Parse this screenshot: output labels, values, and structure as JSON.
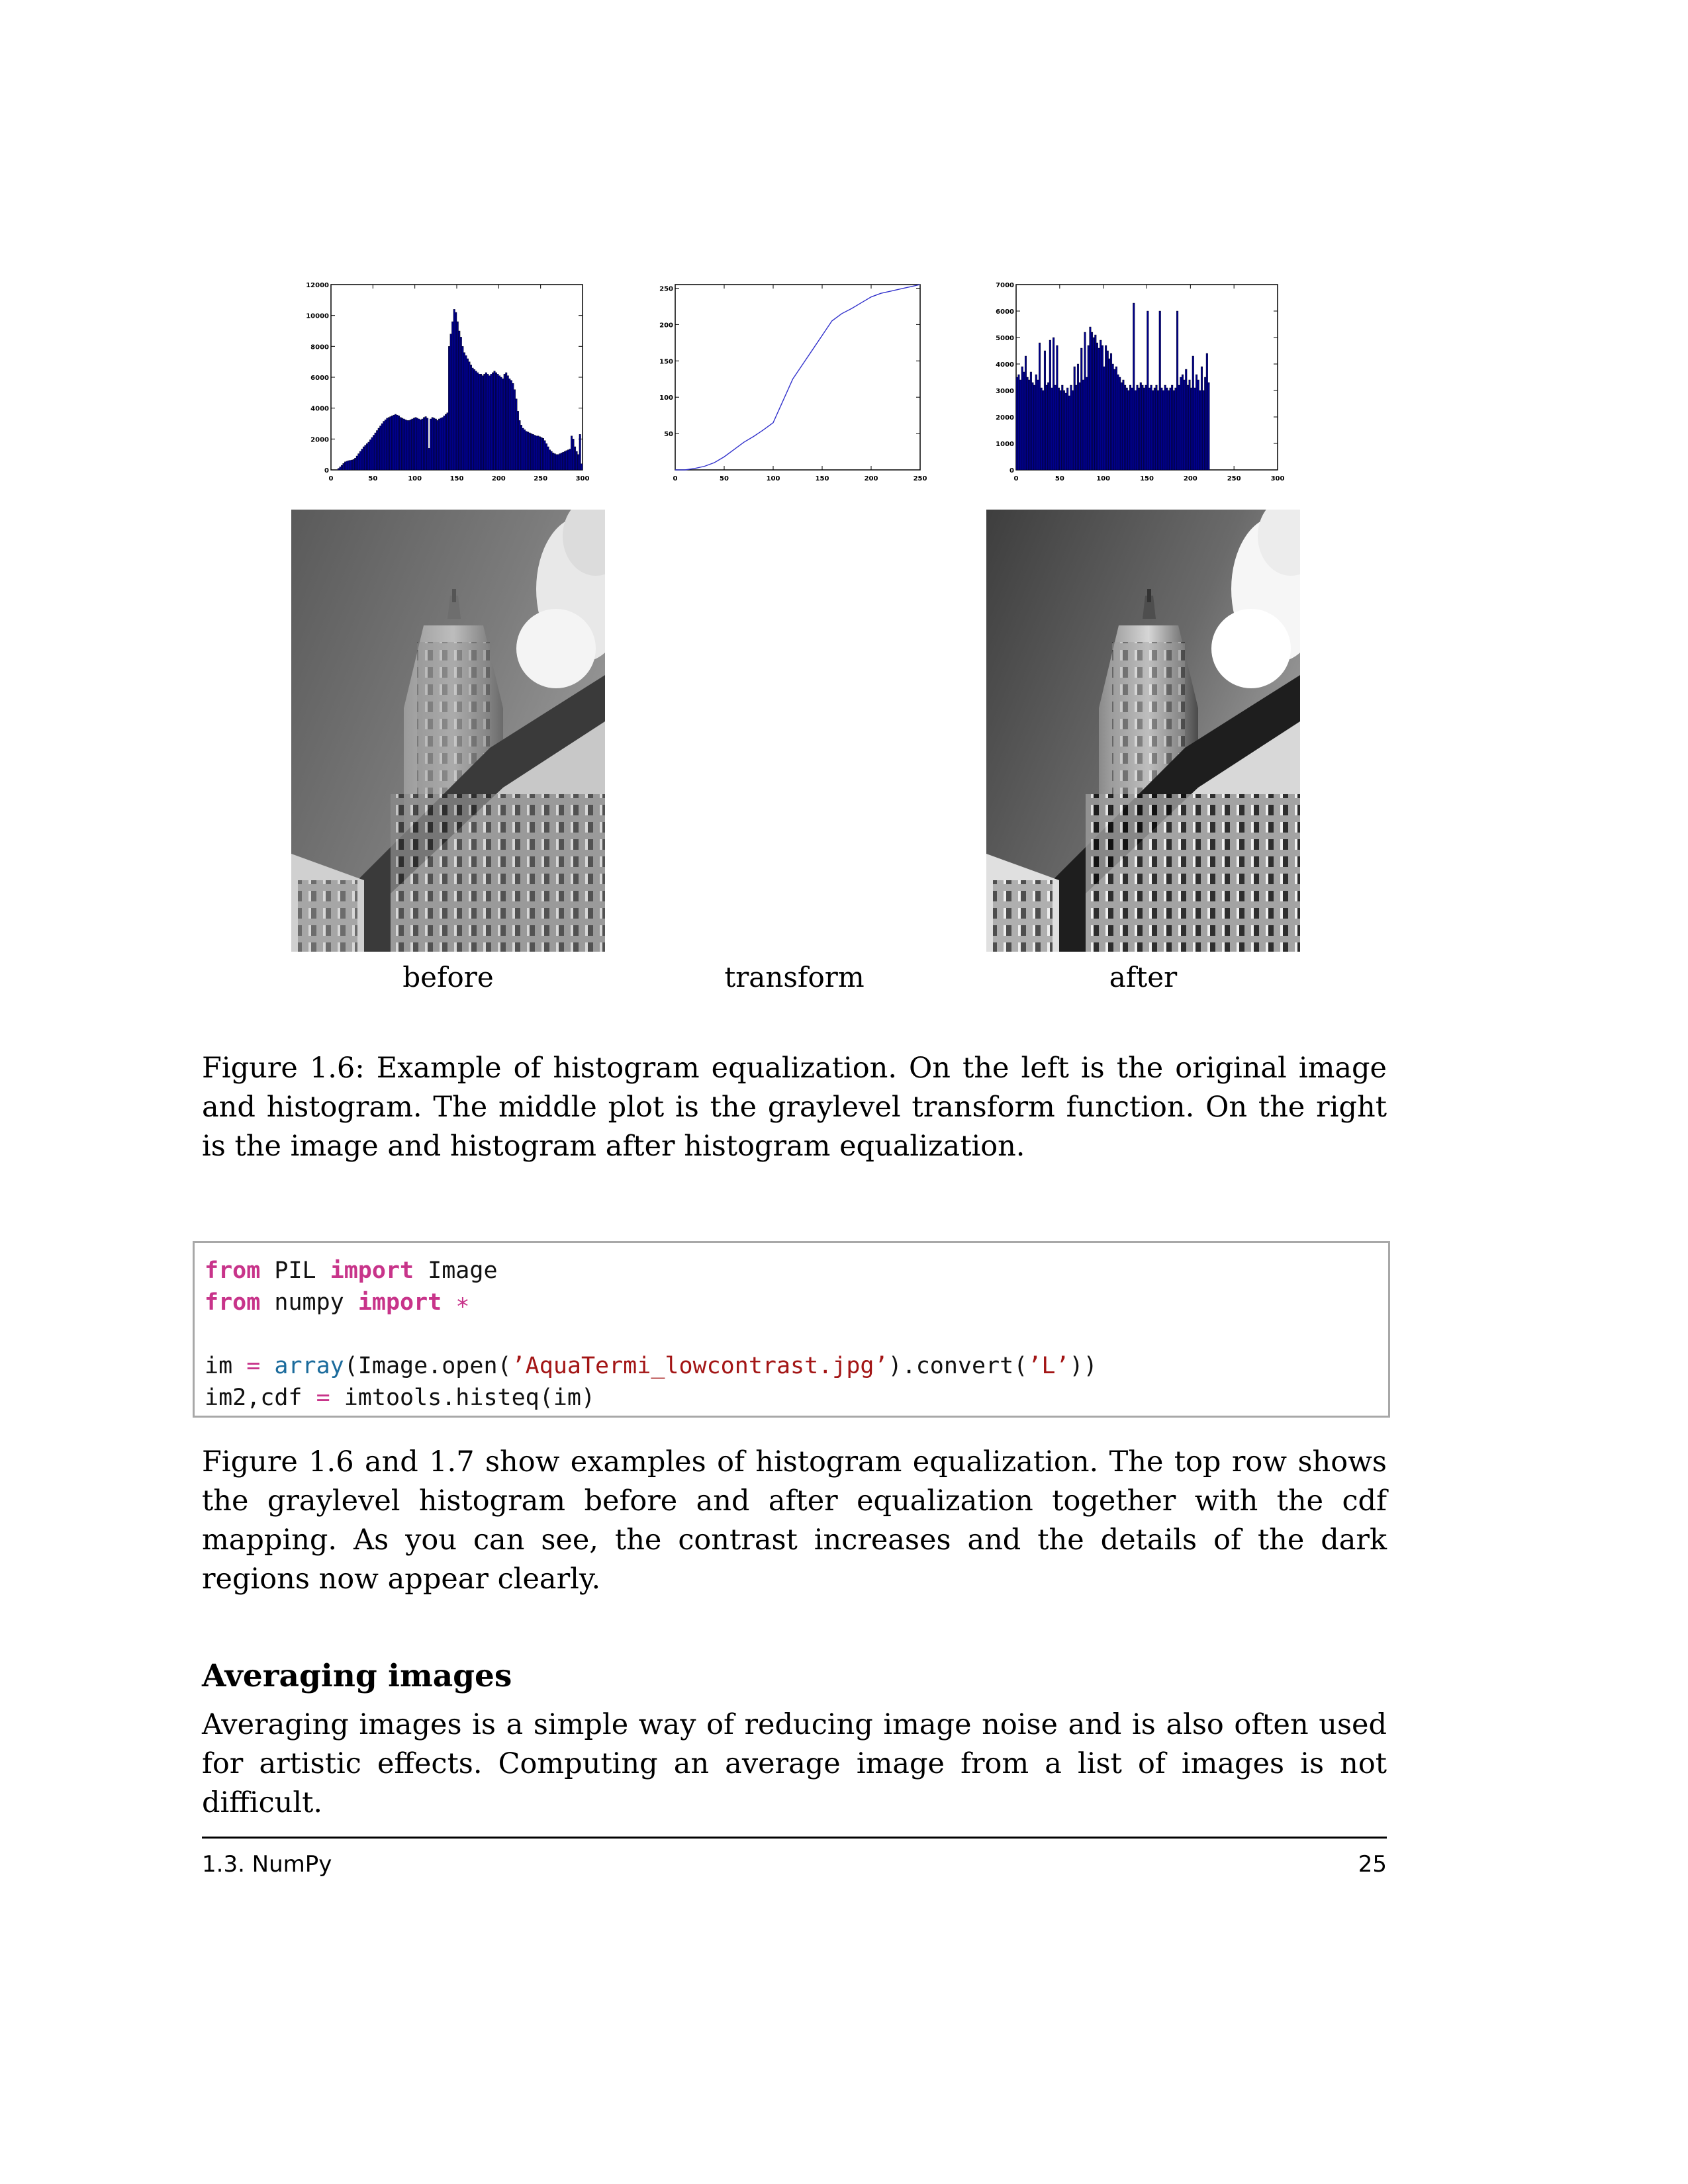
{
  "chart_data": [
    {
      "type": "bar",
      "name": "before-histogram",
      "xlim": [
        0,
        300
      ],
      "ylim": [
        0,
        12000
      ],
      "xticks": [
        "0",
        "50",
        "100",
        "150",
        "200",
        "250",
        "300"
      ],
      "yticks": [
        "0",
        "2000",
        "4000",
        "6000",
        "8000",
        "10000",
        "12000"
      ],
      "bin_width": 2,
      "x_start": 0,
      "values": [
        0,
        0,
        0,
        0,
        100,
        200,
        300,
        420,
        520,
        560,
        600,
        620,
        640,
        680,
        760,
        900,
        1050,
        1200,
        1350,
        1500,
        1600,
        1700,
        1800,
        1950,
        2100,
        2250,
        2400,
        2550,
        2700,
        2850,
        3000,
        3150,
        3250,
        3350,
        3400,
        3450,
        3500,
        3550,
        3600,
        3550,
        3500,
        3400,
        3350,
        3300,
        3250,
        3200,
        3200,
        3250,
        3300,
        3350,
        3400,
        3350,
        3300,
        3250,
        3300,
        3400,
        3450,
        3350,
        1400,
        3300,
        3400,
        3350,
        3300,
        3200,
        3300,
        3350,
        3400,
        3500,
        3600,
        3700,
        8000,
        8800,
        9600,
        10400,
        10200,
        9600,
        9000,
        8600,
        8000,
        7600,
        7400,
        7200,
        7000,
        6800,
        6600,
        6500,
        6400,
        6300,
        6200,
        6200,
        6100,
        6200,
        6300,
        6200,
        6100,
        6200,
        6300,
        6400,
        6300,
        6200,
        6100,
        6000,
        5900,
        6200,
        6300,
        6100,
        5900,
        5800,
        5600,
        5200,
        4600,
        3800,
        3200,
        2900,
        2700,
        2600,
        2500,
        2450,
        2400,
        2350,
        2300,
        2250,
        2200,
        2200,
        2150,
        2100,
        2050,
        1900,
        1700,
        1500,
        1300,
        1200,
        1100,
        1050,
        1000,
        1000,
        1050,
        1100,
        1150,
        1200,
        1250,
        1300,
        1350,
        2200,
        2000,
        1500,
        1200,
        1000,
        2300,
        400
      ],
      "series_color": "#00008b"
    },
    {
      "type": "line",
      "name": "transform",
      "xlim": [
        0,
        250
      ],
      "ylim": [
        0,
        255
      ],
      "xticks": [
        "0",
        "50",
        "100",
        "150",
        "200",
        "250"
      ],
      "yticks": [
        "50",
        "100",
        "150",
        "200",
        "250"
      ],
      "x": [
        0,
        10,
        20,
        30,
        40,
        50,
        60,
        70,
        80,
        90,
        100,
        110,
        120,
        130,
        140,
        150,
        160,
        170,
        180,
        190,
        200,
        210,
        220,
        230,
        240,
        250
      ],
      "y": [
        0,
        0,
        2,
        5,
        10,
        18,
        28,
        38,
        46,
        55,
        65,
        95,
        125,
        145,
        165,
        185,
        205,
        215,
        222,
        230,
        238,
        243,
        246,
        249,
        252,
        255
      ],
      "series_color": "#3333cc"
    },
    {
      "type": "bar",
      "name": "after-histogram",
      "xlim": [
        0,
        300
      ],
      "ylim": [
        0,
        7000
      ],
      "xticks": [
        "0",
        "50",
        "100",
        "150",
        "200",
        "250",
        "300"
      ],
      "yticks": [
        "0",
        "1000",
        "2000",
        "3000",
        "4000",
        "5000",
        "6000",
        "7000"
      ],
      "bin_width": 2,
      "x_start": 0,
      "values": [
        3500,
        3600,
        3400,
        3900,
        3700,
        4300,
        3500,
        3400,
        3700,
        3300,
        3200,
        3600,
        3400,
        4800,
        3100,
        3000,
        4500,
        3200,
        3300,
        4900,
        3100,
        5000,
        3200,
        4700,
        3100,
        3000,
        3200,
        3000,
        2900,
        3100,
        2800,
        3200,
        3000,
        3900,
        3200,
        4000,
        3300,
        4600,
        3400,
        5200,
        3500,
        4700,
        5400,
        5200,
        5000,
        5100,
        4800,
        4600,
        4900,
        4700,
        3900,
        4700,
        4500,
        4200,
        4400,
        4000,
        3800,
        3900,
        3600,
        3500,
        3300,
        3400,
        3200,
        3100,
        3000,
        3200,
        3100,
        6300,
        3000,
        3200,
        3100,
        3300,
        3200,
        3100,
        3200,
        6000,
        3100,
        3200,
        3000,
        3100,
        3200,
        3000,
        6000,
        3100,
        3000,
        3200,
        3100,
        3000,
        3100,
        3200,
        3000,
        3100,
        6000,
        3200,
        3500,
        3600,
        3400,
        3800,
        3200,
        3400,
        3100,
        4300,
        3100,
        3600,
        3400,
        3000,
        3900,
        3000,
        3500,
        4400,
        3300
      ]
    }
  ],
  "sublabels": {
    "before": "before",
    "transform": "transform",
    "after": "after"
  },
  "caption": "Figure 1.6: Example of histogram equalization. On the left is the original image and histogram. The middle plot is the graylevel transform function. On the right is the image and histogram after histogram equalization.",
  "code": {
    "line1": {
      "kw1": "from",
      "mod": " PIL ",
      "kw2": "import",
      "name": " Image"
    },
    "line2": {
      "kw1": "from",
      "mod": " numpy ",
      "kw2": "import",
      "star": " ∗"
    },
    "line4": {
      "a": "im ",
      "eq": "=",
      "b": " ",
      "fn": "array",
      "c": "(Image.open(",
      "s1": "’AquaTermi_lowcontrast.jpg’",
      "d": ").convert(",
      "s2": "’L’",
      "e": "))"
    },
    "line5": {
      "a": "im2,cdf ",
      "eq": "=",
      "b": " imtools.histeq(im)"
    }
  },
  "paragraph1": "Figure 1.6 and 1.7 show examples of histogram equalization. The top row shows the graylevel histogram before and after equalization together with the cdf mapping. As you can see, the contrast increases and the details of the dark regions now appear clearly.",
  "section_heading": "Averaging images",
  "paragraph2": "Averaging images is a simple way of reducing image noise and is also often used for artistic effects. Computing an average image from a list of images is not difficult.",
  "footer": {
    "section": "1.3. NumPy",
    "page": "25"
  }
}
